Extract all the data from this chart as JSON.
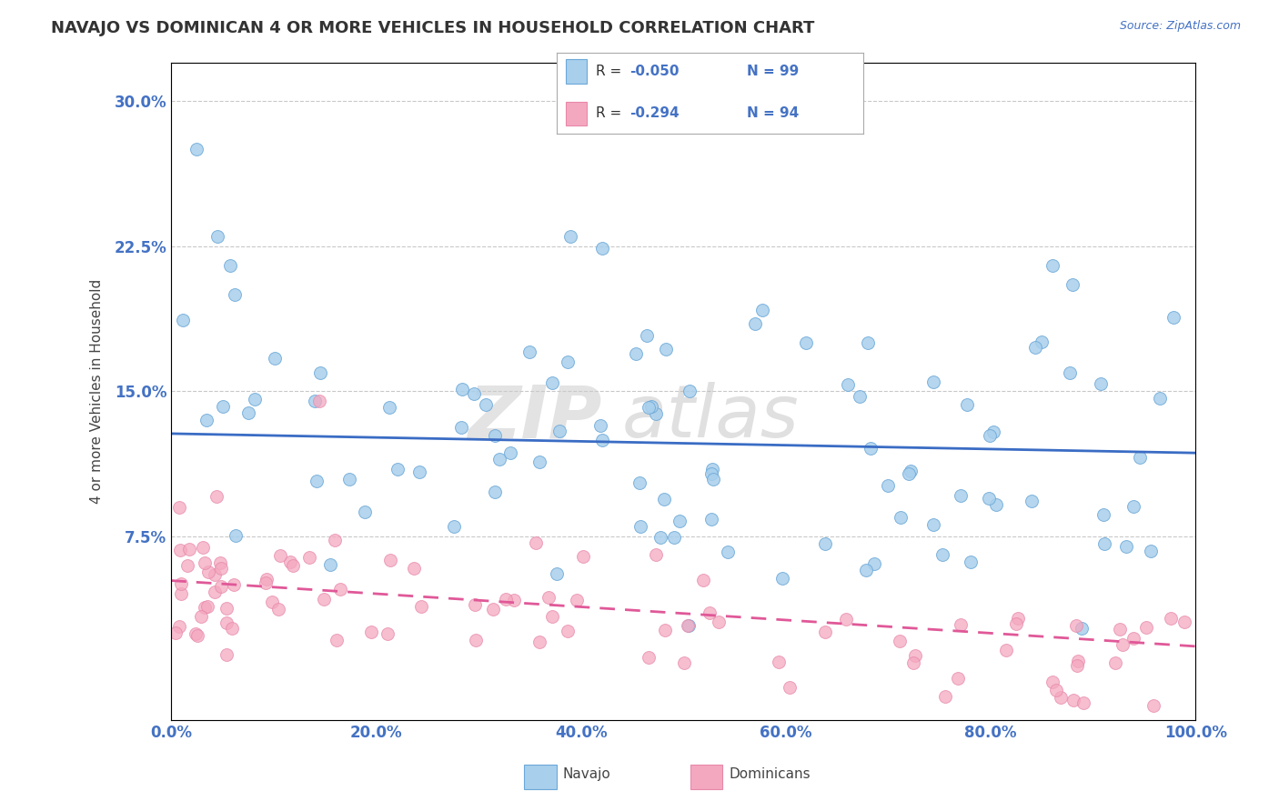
{
  "title": "NAVAJO VS DOMINICAN 4 OR MORE VEHICLES IN HOUSEHOLD CORRELATION CHART",
  "source": "Source: ZipAtlas.com",
  "ylabel": "4 or more Vehicles in Household",
  "x_min": 0.0,
  "x_max": 100.0,
  "y_min": -2.0,
  "y_max": 32.0,
  "y_ticks": [
    7.5,
    15.0,
    22.5,
    30.0
  ],
  "x_ticks": [
    0.0,
    20.0,
    40.0,
    60.0,
    80.0,
    100.0
  ],
  "x_tick_labels": [
    "0.0%",
    "20.0%",
    "40.0%",
    "60.0%",
    "80.0%",
    "100.0%"
  ],
  "y_tick_labels": [
    "7.5%",
    "15.0%",
    "22.5%",
    "30.0%"
  ],
  "navajo_color": "#A8CFEC",
  "dominican_color": "#F4A8C0",
  "navajo_edge_color": "#6CA8D8",
  "dominican_edge_color": "#E888AA",
  "navajo_line_color": "#3A6CC4",
  "dominican_line_color": "#E05898",
  "accent_color": "#4472C4",
  "navajo_R": -0.05,
  "navajo_N": 99,
  "dominican_R": -0.294,
  "dominican_N": 94,
  "background_color": "#FFFFFF",
  "grid_color": "#BBBBBB",
  "navajo_trend_start_y": 12.8,
  "navajo_trend_end_y": 11.8,
  "dominican_trend_start_y": 5.2,
  "dominican_trend_end_y": 1.8
}
